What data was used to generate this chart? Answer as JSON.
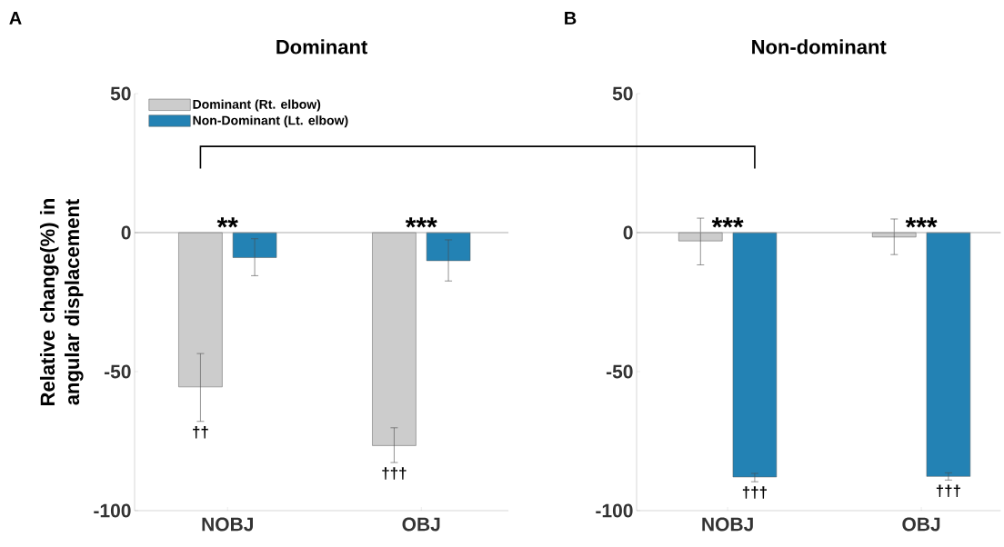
{
  "chart_data": [
    {
      "type": "bar",
      "title": "Dominant",
      "ylabel": "Relative change(%) in angular displacement",
      "categories": [
        "NOBJ",
        "OBJ"
      ],
      "ylim": [
        -100,
        50
      ],
      "yticks": [
        -100,
        -50,
        0,
        50
      ],
      "legend": "top left",
      "series": [
        {
          "name": "Dominant (Rt. elbow)",
          "color": "#cccccc",
          "values": [
            -55.5,
            -76.6
          ],
          "errors": [
            [
              -67.9,
              -43.5
            ],
            [
              -82.7,
              -70.2
            ]
          ],
          "value_labels": [
            "††",
            "†††"
          ]
        },
        {
          "name": "Non-Dominant (Lt. elbow)",
          "color": "#2382b4",
          "values": [
            -9.0,
            -10.1
          ],
          "errors": [
            [
              -15.5,
              -2.2
            ],
            [
              -17.4,
              -2.6
            ]
          ],
          "value_labels": [
            null,
            null
          ]
        }
      ],
      "ref_lines": [
        {
          "axis": "y",
          "value": 0,
          "color": "#999999"
        }
      ],
      "annotations": [
        "A",
        "**",
        "***"
      ]
    },
    {
      "type": "bar",
      "title": "Non-dominant",
      "categories": [
        "NOBJ",
        "OBJ"
      ],
      "ylim": [
        -100,
        50
      ],
      "yticks": [
        -100,
        -50,
        0,
        50
      ],
      "series": [
        {
          "color": "#cccccc",
          "values": [
            -3.0,
            -1.6
          ],
          "errors": [
            [
              -11.6,
              5.2
            ],
            [
              -7.9,
              4.9
            ]
          ],
          "value_labels": [
            null,
            null
          ]
        },
        {
          "color": "#2382b4",
          "values": [
            -87.9,
            -87.7
          ],
          "errors": [
            [
              -89.6,
              -86.6
            ],
            [
              -89.0,
              -86.4
            ]
          ],
          "value_labels": [
            "†††",
            "†††"
          ]
        }
      ],
      "ref_lines": [
        {
          "axis": "y",
          "value": 0,
          "color": "#999999"
        }
      ],
      "annotations": [
        "B",
        "***",
        "***"
      ]
    }
  ]
}
